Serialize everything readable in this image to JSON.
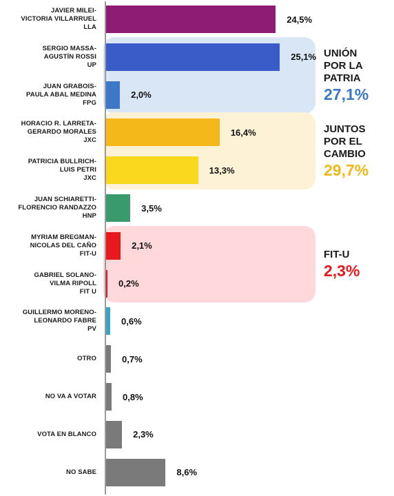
{
  "chart_data": {
    "type": "bar",
    "orientation": "horizontal",
    "xlim": [
      0,
      30
    ],
    "rows": [
      {
        "label": "JAVIER MILEI-\nVICTORIA VILLARRUEL\nLLA",
        "value": 24.5,
        "value_label": "24,5%",
        "color": "#8e1c74"
      },
      {
        "label": "SERGIO MASSA-\nAGUSTÍN ROSSI\nUP",
        "value": 25.1,
        "value_label": "25,1%",
        "color": "#3a5cc8"
      },
      {
        "label": "JUAN GRABOIS-\nPAULA ABAL MEDINA\nFPG",
        "value": 2.0,
        "value_label": "2,0%",
        "color": "#3d78c8"
      },
      {
        "label": "HORACIO R. LARRETA-\nGERARDO MORALES\nJXC",
        "value": 16.4,
        "value_label": "16,4%",
        "color": "#f4b81a"
      },
      {
        "label": "PATRICIA BULLRICH-\nLUIS PETRI\nJXC",
        "value": 13.3,
        "value_label": "13,3%",
        "color": "#f9d81e"
      },
      {
        "label": "JUAN SCHIARETTI-\nFLORENCIO RANDAZZO\nHNP",
        "value": 3.5,
        "value_label": "3,5%",
        "color": "#3a9a6e"
      },
      {
        "label": "MYRIAM BREGMAN-\nNICOLAS DEL CAÑO\nFIT-U",
        "value": 2.1,
        "value_label": "2,1%",
        "color": "#e8191c"
      },
      {
        "label": "GABRIEL SOLANO-\nVILMA RIPOLL\nFIT U",
        "value": 0.2,
        "value_label": "0,2%",
        "color": "#c81e28"
      },
      {
        "label": "GUILLERMO MORENO-\nLEONARDO FABRE\nPV",
        "value": 0.6,
        "value_label": "0,6%",
        "color": "#38a4c4"
      },
      {
        "label": "OTRO",
        "value": 0.7,
        "value_label": "0,7%",
        "color": "#7a7a7a"
      },
      {
        "label": "NO VA A VOTAR",
        "value": 0.8,
        "value_label": "0,8%",
        "color": "#7a7a7a"
      },
      {
        "label": "VOTA EN BLANCO",
        "value": 2.3,
        "value_label": "2,3%",
        "color": "#7a7a7a"
      },
      {
        "label": "NO SABE",
        "value": 8.6,
        "value_label": "8,6%",
        "color": "#7a7a7a"
      }
    ],
    "groups": [
      {
        "name": "UNIÓN\nPOR LA\nPATRIA",
        "total_label": "27,1%",
        "first_row": 1,
        "last_row": 2,
        "box_color": "#d9e6f6",
        "total_color": "#3a78c8"
      },
      {
        "name": "JUNTOS\nPOR EL\nCAMBIO",
        "total_label": "29,7%",
        "first_row": 3,
        "last_row": 4,
        "box_color": "#fdf2d6",
        "total_color": "#f2b81a"
      },
      {
        "name": "FIT-U",
        "total_label": "2,3%",
        "first_row": 6,
        "last_row": 7,
        "box_color": "#ffd8dc",
        "total_color": "#e8191c"
      }
    ]
  }
}
